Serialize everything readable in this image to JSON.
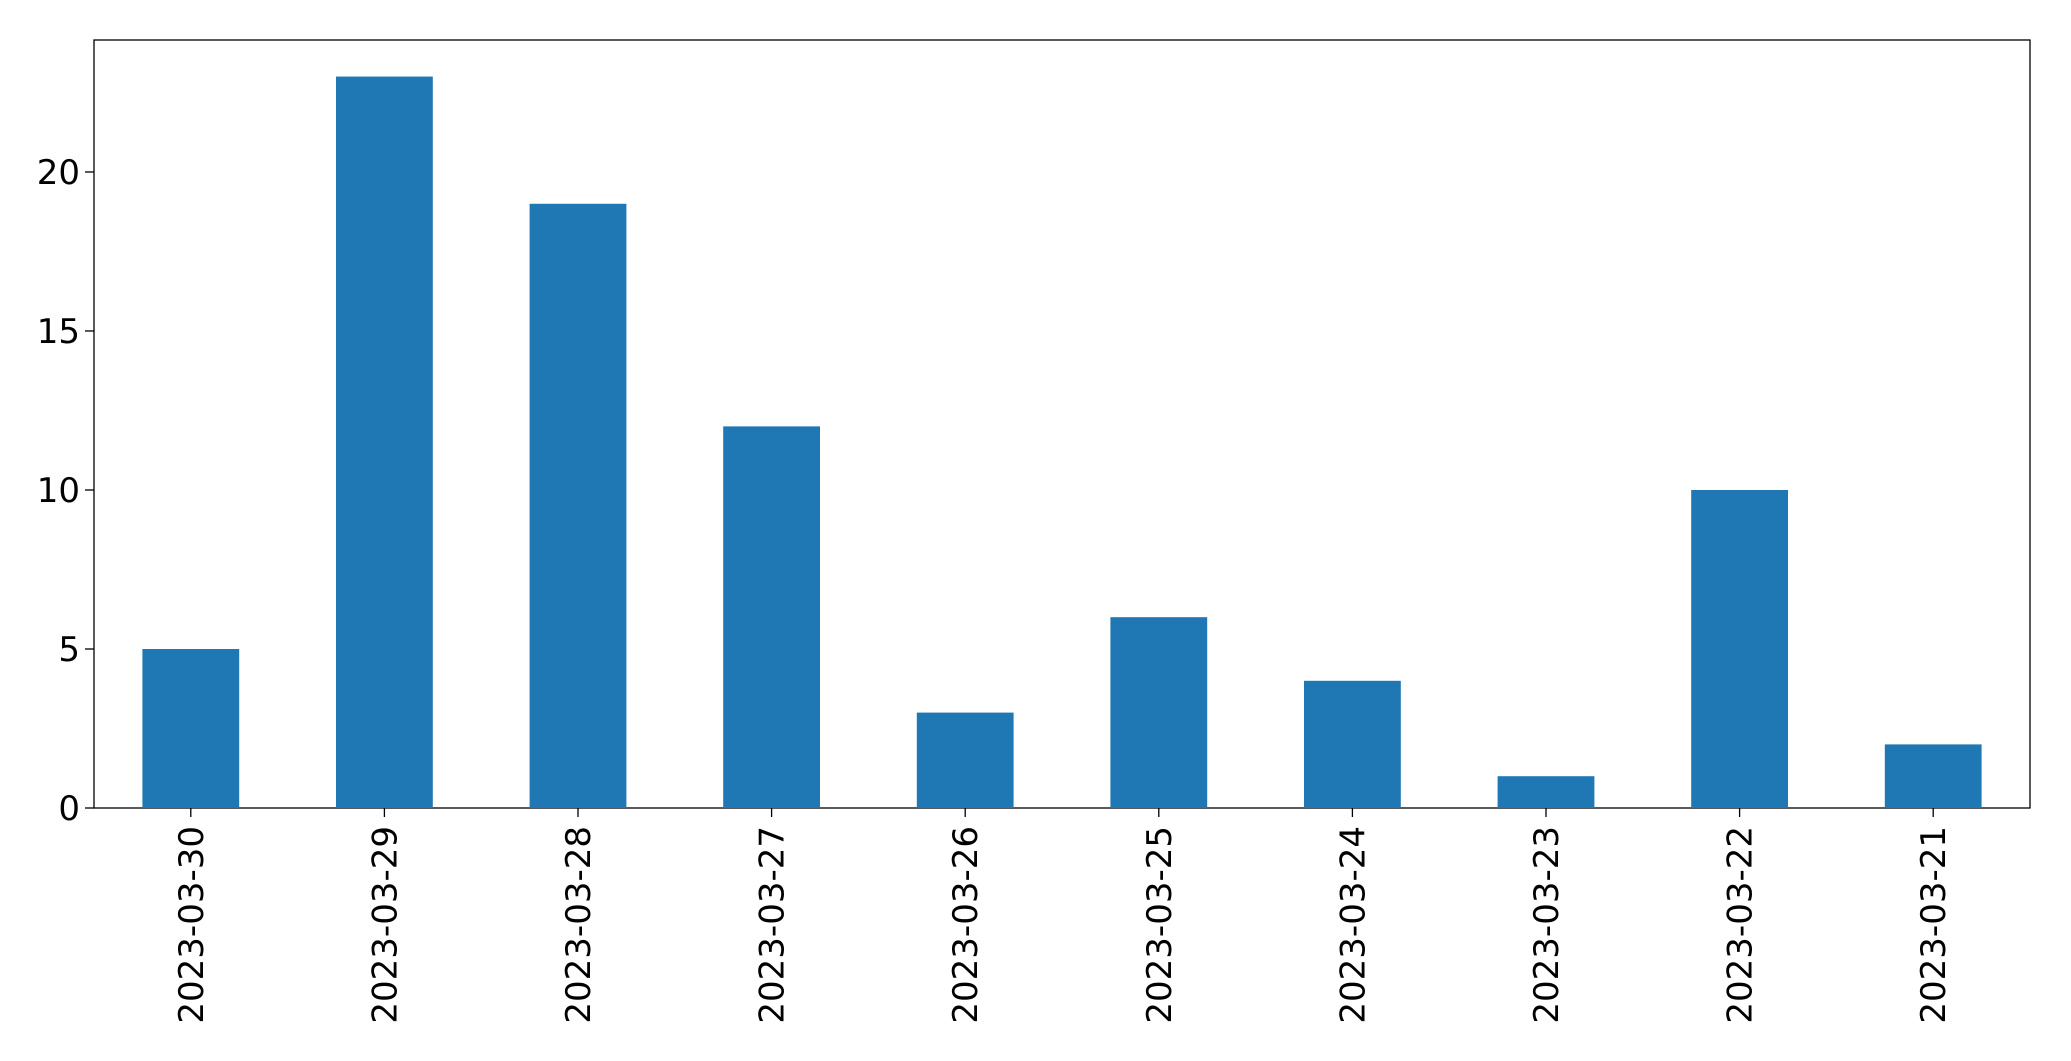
{
  "chart_data": {
    "type": "bar",
    "categories": [
      "2023-03-30",
      "2023-03-29",
      "2023-03-28",
      "2023-03-27",
      "2023-03-26",
      "2023-03-25",
      "2023-03-24",
      "2023-03-23",
      "2023-03-22",
      "2023-03-21"
    ],
    "values": [
      5,
      23,
      19,
      12,
      3,
      6,
      4,
      1,
      10,
      2
    ],
    "color": "#1f77b4",
    "ylim": [
      0,
      24.15
    ],
    "yticks": [
      0,
      5,
      10,
      15,
      20
    ],
    "grid": false
  }
}
